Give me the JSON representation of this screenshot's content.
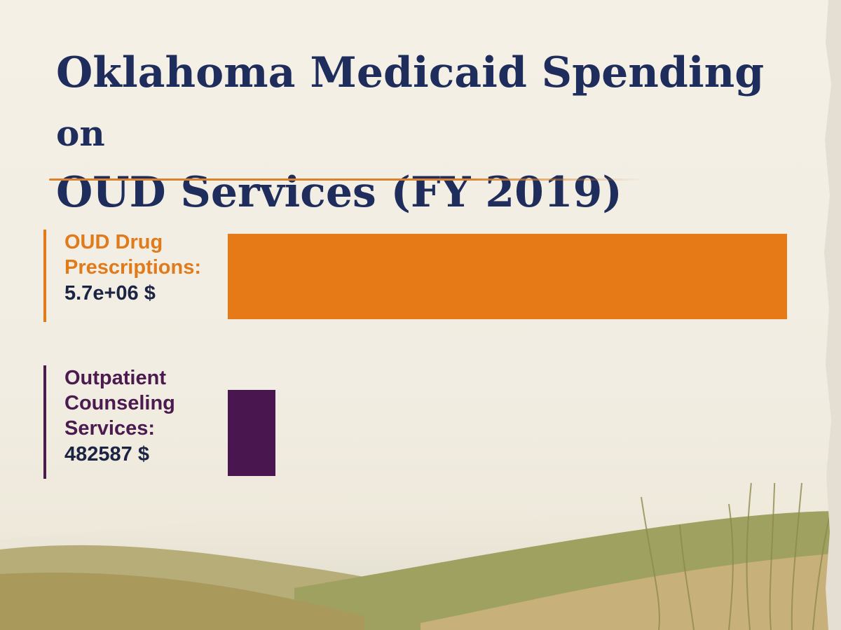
{
  "chart_data": {
    "type": "bar",
    "orientation": "horizontal",
    "title_main": "Oklahoma Medicaid Spending",
    "title_on": "on",
    "title_line2": "OUD Services (FY 2019)",
    "xlim": [
      0,
      5700000
    ],
    "categories": [
      "OUD Drug Prescriptions:",
      "Outpatient Counseling Services:"
    ],
    "values": [
      5700000,
      482587
    ],
    "value_labels": [
      "5.7e+06 $",
      "482587 $"
    ],
    "colors": [
      "#e67a16",
      "#4a1650"
    ],
    "grid": false,
    "legend": "none"
  }
}
